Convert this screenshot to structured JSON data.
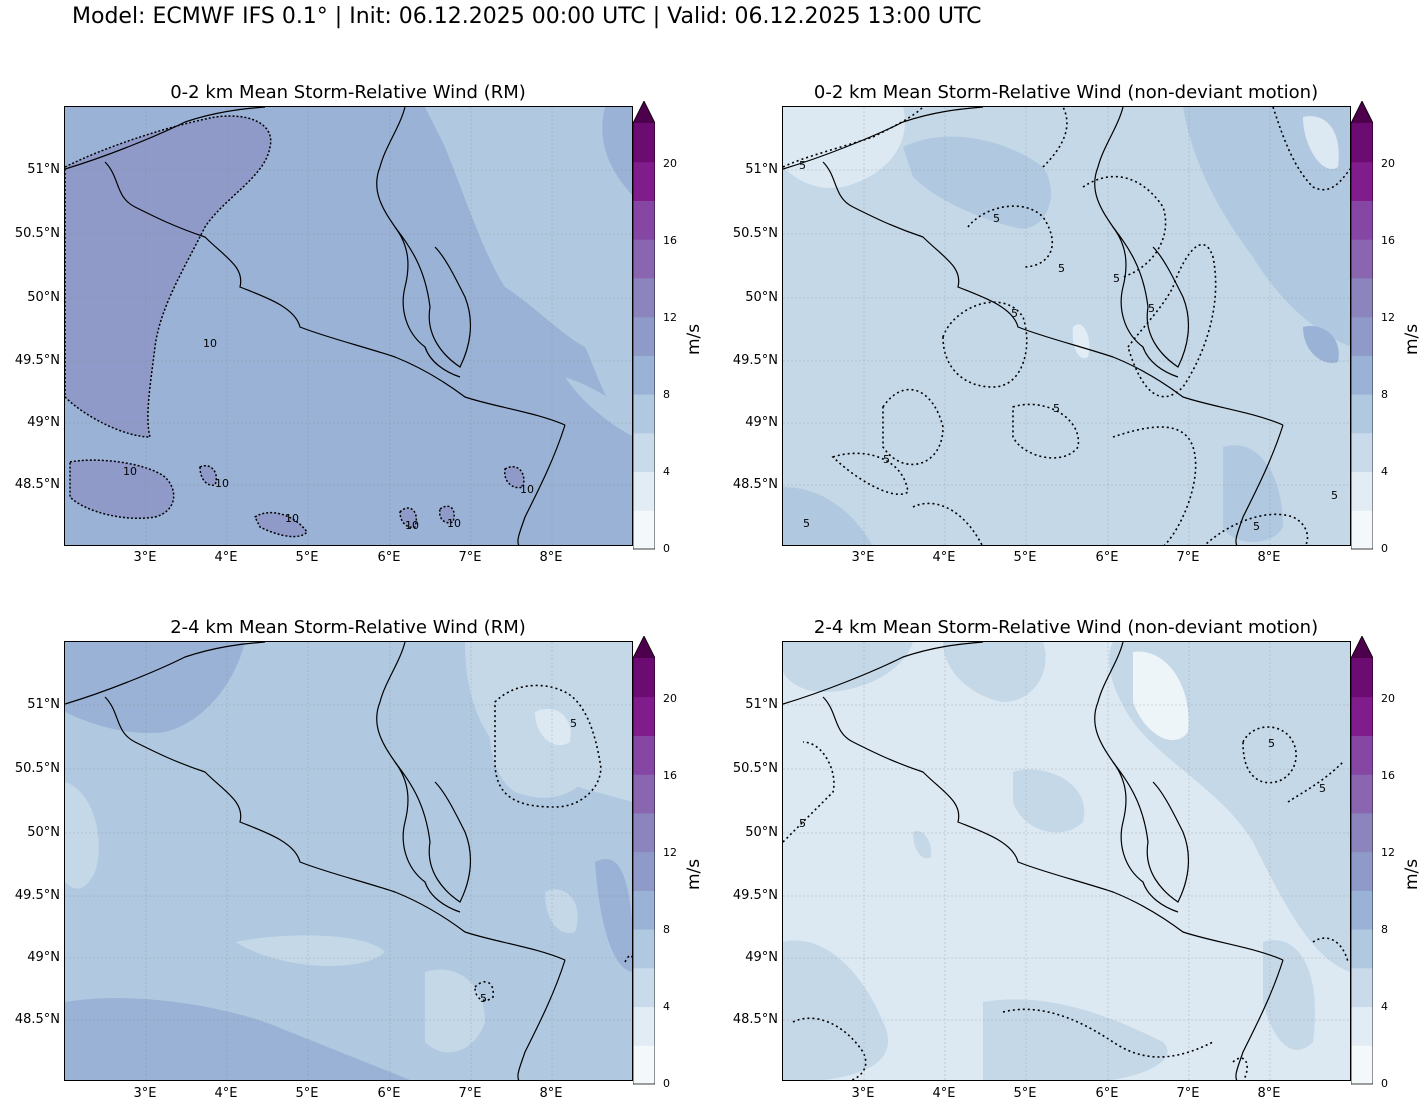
{
  "title": "Model: ECMWF IFS 0.1° | Init: 06.12.2025 00:00 UTC | Valid: 06.12.2025 13:00 UTC",
  "colorbar": {
    "label": "m/s",
    "ticks": [
      "0",
      "4",
      "8",
      "12",
      "16",
      "20"
    ],
    "colors": [
      "#f3f8fb",
      "#e2ecf4",
      "#c9dbea",
      "#b0c9e0",
      "#9ab2d6",
      "#8f9ac8",
      "#8c84bd",
      "#8a66b0",
      "#8646a4",
      "#811c8c",
      "#6c0b71",
      "#4d004b"
    ]
  },
  "lat_labels": [
    "51°N",
    "50.5°N",
    "50°N",
    "49.5°N",
    "49°N",
    "48.5°N"
  ],
  "lon_labels": [
    "3°E",
    "4°E",
    "5°E",
    "6°E",
    "7°E",
    "8°E"
  ],
  "panels": [
    {
      "title": "0-2 km Mean Storm-Relative Wind (RM)",
      "base_color": "#9ab2d6",
      "contour_labels": [
        "10",
        "10",
        "10",
        "10",
        "10",
        "10",
        "10"
      ]
    },
    {
      "title": "0-2 km Mean Storm-Relative Wind (non-deviant motion)",
      "base_color": "#c5d8e8",
      "contour_labels": [
        "5",
        "5",
        "5",
        "5",
        "5",
        "5",
        "5",
        "5",
        "5",
        "5",
        "5"
      ]
    },
    {
      "title": "2-4 km Mean Storm-Relative Wind (RM)",
      "base_color": "#b0c9e0",
      "contour_labels": [
        "5",
        "5"
      ]
    },
    {
      "title": "2-4 km Mean Storm-Relative Wind (non-deviant motion)",
      "base_color": "#dce8f2",
      "contour_labels": [
        "5",
        "5",
        "5"
      ]
    }
  ]
}
